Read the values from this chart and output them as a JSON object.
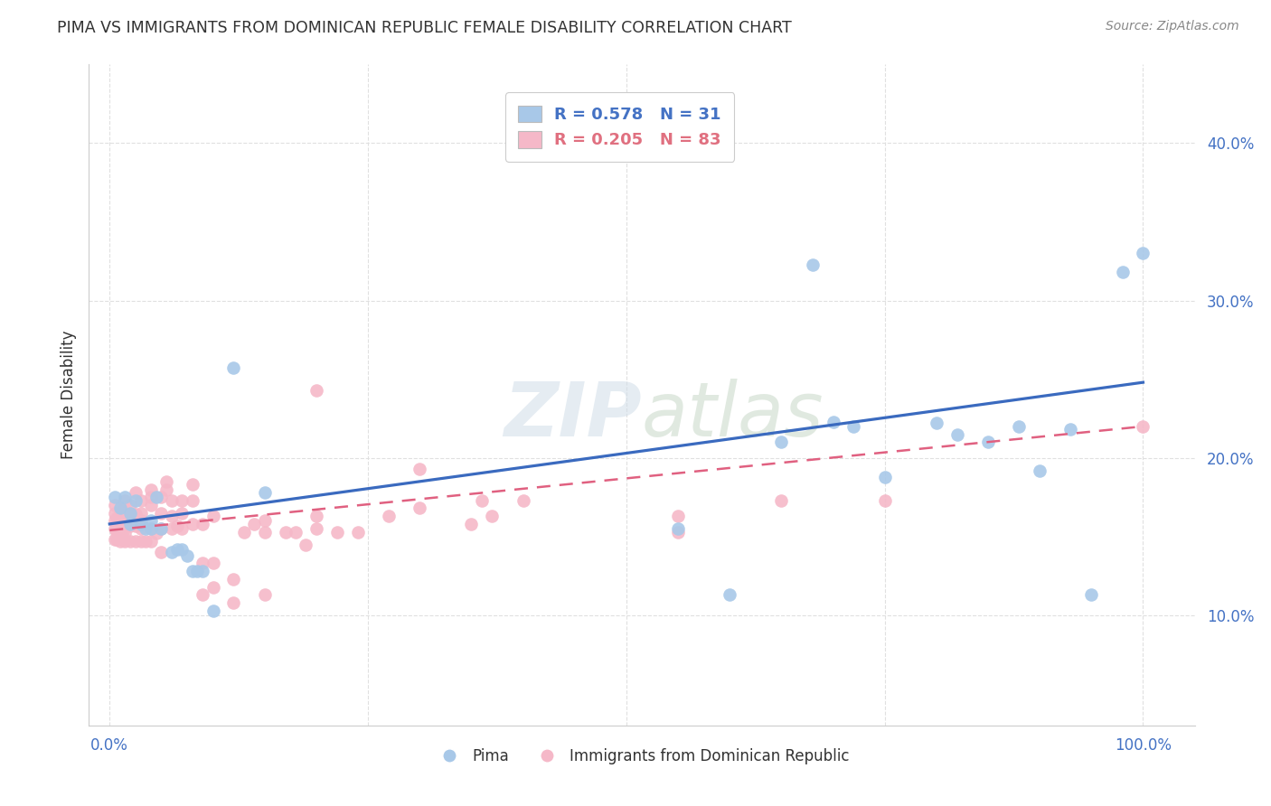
{
  "title": "PIMA VS IMMIGRANTS FROM DOMINICAN REPUBLIC FEMALE DISABILITY CORRELATION CHART",
  "source": "Source: ZipAtlas.com",
  "ylabel": "Female Disability",
  "xlim": [
    -0.02,
    1.05
  ],
  "ylim": [
    0.03,
    0.45
  ],
  "yticks": [
    0.1,
    0.2,
    0.3,
    0.4
  ],
  "ytick_labels": [
    "10.0%",
    "20.0%",
    "30.0%",
    "40.0%"
  ],
  "xticks": [
    0.0,
    0.25,
    0.5,
    0.75,
    1.0
  ],
  "xtick_labels": [
    "0.0%",
    "",
    "",
    "",
    "100.0%"
  ],
  "watermark_text": "ZIPatlas",
  "blue_color": "#a8c8e8",
  "pink_color": "#f5b8c8",
  "blue_line_color": "#3a6abf",
  "pink_line_color": "#e06080",
  "blue_scatter": [
    [
      0.005,
      0.175
    ],
    [
      0.01,
      0.168
    ],
    [
      0.015,
      0.175
    ],
    [
      0.02,
      0.165
    ],
    [
      0.02,
      0.158
    ],
    [
      0.025,
      0.173
    ],
    [
      0.03,
      0.158
    ],
    [
      0.035,
      0.155
    ],
    [
      0.04,
      0.155
    ],
    [
      0.04,
      0.16
    ],
    [
      0.045,
      0.175
    ],
    [
      0.05,
      0.155
    ],
    [
      0.06,
      0.14
    ],
    [
      0.065,
      0.142
    ],
    [
      0.07,
      0.142
    ],
    [
      0.075,
      0.138
    ],
    [
      0.08,
      0.128
    ],
    [
      0.085,
      0.128
    ],
    [
      0.09,
      0.128
    ],
    [
      0.1,
      0.103
    ],
    [
      0.12,
      0.257
    ],
    [
      0.15,
      0.178
    ],
    [
      0.55,
      0.155
    ],
    [
      0.6,
      0.113
    ],
    [
      0.65,
      0.21
    ],
    [
      0.7,
      0.223
    ],
    [
      0.72,
      0.22
    ],
    [
      0.75,
      0.188
    ],
    [
      0.8,
      0.222
    ],
    [
      0.82,
      0.215
    ],
    [
      0.85,
      0.21
    ],
    [
      0.88,
      0.22
    ],
    [
      0.9,
      0.192
    ],
    [
      0.93,
      0.218
    ],
    [
      0.95,
      0.113
    ],
    [
      0.68,
      0.323
    ],
    [
      0.98,
      0.318
    ],
    [
      1.0,
      0.33
    ]
  ],
  "pink_scatter": [
    [
      0.005,
      0.148
    ],
    [
      0.005,
      0.155
    ],
    [
      0.005,
      0.16
    ],
    [
      0.005,
      0.165
    ],
    [
      0.005,
      0.17
    ],
    [
      0.007,
      0.148
    ],
    [
      0.007,
      0.153
    ],
    [
      0.007,
      0.157
    ],
    [
      0.007,
      0.162
    ],
    [
      0.01,
      0.147
    ],
    [
      0.01,
      0.152
    ],
    [
      0.01,
      0.157
    ],
    [
      0.01,
      0.164
    ],
    [
      0.012,
      0.152
    ],
    [
      0.015,
      0.147
    ],
    [
      0.015,
      0.152
    ],
    [
      0.015,
      0.157
    ],
    [
      0.015,
      0.162
    ],
    [
      0.015,
      0.168
    ],
    [
      0.015,
      0.173
    ],
    [
      0.02,
      0.147
    ],
    [
      0.02,
      0.157
    ],
    [
      0.02,
      0.164
    ],
    [
      0.02,
      0.17
    ],
    [
      0.025,
      0.147
    ],
    [
      0.025,
      0.157
    ],
    [
      0.025,
      0.164
    ],
    [
      0.025,
      0.178
    ],
    [
      0.03,
      0.147
    ],
    [
      0.03,
      0.155
    ],
    [
      0.03,
      0.16
    ],
    [
      0.03,
      0.165
    ],
    [
      0.03,
      0.173
    ],
    [
      0.035,
      0.147
    ],
    [
      0.04,
      0.147
    ],
    [
      0.04,
      0.155
    ],
    [
      0.04,
      0.17
    ],
    [
      0.04,
      0.175
    ],
    [
      0.04,
      0.18
    ],
    [
      0.045,
      0.152
    ],
    [
      0.05,
      0.14
    ],
    [
      0.05,
      0.155
    ],
    [
      0.05,
      0.165
    ],
    [
      0.05,
      0.175
    ],
    [
      0.055,
      0.18
    ],
    [
      0.055,
      0.185
    ],
    [
      0.06,
      0.155
    ],
    [
      0.06,
      0.163
    ],
    [
      0.06,
      0.173
    ],
    [
      0.065,
      0.157
    ],
    [
      0.07,
      0.155
    ],
    [
      0.07,
      0.165
    ],
    [
      0.07,
      0.173
    ],
    [
      0.08,
      0.158
    ],
    [
      0.08,
      0.173
    ],
    [
      0.08,
      0.183
    ],
    [
      0.09,
      0.113
    ],
    [
      0.09,
      0.133
    ],
    [
      0.09,
      0.158
    ],
    [
      0.1,
      0.118
    ],
    [
      0.1,
      0.133
    ],
    [
      0.1,
      0.163
    ],
    [
      0.12,
      0.108
    ],
    [
      0.12,
      0.123
    ],
    [
      0.13,
      0.153
    ],
    [
      0.14,
      0.158
    ],
    [
      0.15,
      0.113
    ],
    [
      0.15,
      0.153
    ],
    [
      0.15,
      0.16
    ],
    [
      0.17,
      0.153
    ],
    [
      0.18,
      0.153
    ],
    [
      0.19,
      0.145
    ],
    [
      0.2,
      0.155
    ],
    [
      0.2,
      0.163
    ],
    [
      0.22,
      0.153
    ],
    [
      0.24,
      0.153
    ],
    [
      0.27,
      0.163
    ],
    [
      0.3,
      0.193
    ],
    [
      0.35,
      0.158
    ],
    [
      0.36,
      0.173
    ],
    [
      0.37,
      0.163
    ],
    [
      0.4,
      0.173
    ],
    [
      0.2,
      0.243
    ],
    [
      0.3,
      0.168
    ],
    [
      0.55,
      0.153
    ],
    [
      0.55,
      0.163
    ],
    [
      0.65,
      0.173
    ],
    [
      0.75,
      0.173
    ],
    [
      1.0,
      0.22
    ]
  ],
  "blue_line_pts": [
    [
      0.0,
      0.158
    ],
    [
      1.0,
      0.248
    ]
  ],
  "pink_line_pts": [
    [
      0.0,
      0.154
    ],
    [
      1.0,
      0.22
    ]
  ],
  "background_color": "#ffffff",
  "grid_color": "#e0e0e0",
  "title_color": "#333333",
  "legend_color_blue": "#4472c4",
  "legend_color_pink": "#e07080",
  "legend_box_blue": "#a8c8e8",
  "legend_box_pink": "#f5b8c8"
}
